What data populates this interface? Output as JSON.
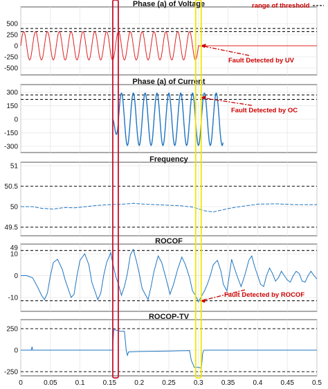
{
  "chart_data": [
    {
      "type": "line",
      "title": "Phase (a) of Voltage",
      "ylim": [
        -600,
        600
      ],
      "yticks": [
        500,
        250,
        0,
        -250,
        -500
      ],
      "thresholds": [
        390,
        320
      ],
      "legend": {
        "label": "range of threshold",
        "placement": "top-right"
      },
      "series": [
        {
          "color": "#e02020",
          "amplitude": 320,
          "freq_hz": 50,
          "x_range": [
            0,
            0.3
          ],
          "after": {
            "x_range": [
              0.3,
              0.5
            ],
            "value": 0
          }
        }
      ],
      "annotation": {
        "text": "Fault Detected by UV",
        "x": 0.3
      }
    },
    {
      "type": "line",
      "title": "Phase (a) of Current",
      "ylim": [
        -340,
        340
      ],
      "yticks": [
        300,
        150,
        0,
        -150,
        -300
      ],
      "thresholds": [
        270,
        220
      ],
      "series": [
        {
          "color": "#1e74c0",
          "amplitude": 290,
          "freq_hz": 50,
          "x_range": [
            0.155,
            0.342
          ]
        }
      ],
      "annotation": {
        "text": "Fault Detected by OC",
        "x": 0.3
      }
    },
    {
      "type": "line",
      "title": "Frequency",
      "ylim": [
        49,
        51
      ],
      "yticks": [
        51,
        50.5,
        50,
        49.5,
        49
      ],
      "thresholds": [
        50.5,
        49.5
      ],
      "series": [
        {
          "color": "#1e74c0",
          "style": "dashed",
          "points": [
            [
              0,
              50.0
            ],
            [
              0.02,
              50.0
            ],
            [
              0.035,
              49.96
            ],
            [
              0.055,
              49.94
            ],
            [
              0.075,
              49.98
            ],
            [
              0.09,
              49.97
            ],
            [
              0.11,
              50.0
            ],
            [
              0.13,
              50.03
            ],
            [
              0.15,
              50.05
            ],
            [
              0.17,
              50.06
            ],
            [
              0.19,
              50.08
            ],
            [
              0.21,
              50.06
            ],
            [
              0.24,
              50.04
            ],
            [
              0.27,
              50.02
            ],
            [
              0.29,
              49.99
            ],
            [
              0.31,
              49.9
            ],
            [
              0.325,
              49.87
            ],
            [
              0.34,
              49.92
            ],
            [
              0.36,
              49.98
            ],
            [
              0.38,
              50.02
            ],
            [
              0.4,
              50.06
            ],
            [
              0.43,
              50.07
            ],
            [
              0.46,
              50.05
            ],
            [
              0.5,
              50.05
            ]
          ]
        }
      ]
    },
    {
      "type": "line",
      "title": "ROCOF",
      "ylim": [
        -14,
        14
      ],
      "yticks": [
        10,
        0,
        -10
      ],
      "thresholds": [
        11.5,
        -11.5
      ],
      "series": [
        {
          "color": "#1e74c0",
          "points": [
            [
              0,
              0
            ],
            [
              0.01,
              0
            ],
            [
              0.02,
              -1
            ],
            [
              0.028,
              -5
            ],
            [
              0.035,
              -9
            ],
            [
              0.04,
              -11
            ],
            [
              0.045,
              -8
            ],
            [
              0.05,
              0
            ],
            [
              0.055,
              6
            ],
            [
              0.062,
              7.5
            ],
            [
              0.07,
              3
            ],
            [
              0.075,
              -2
            ],
            [
              0.085,
              -10
            ],
            [
              0.09,
              -8.5
            ],
            [
              0.095,
              0
            ],
            [
              0.1,
              7
            ],
            [
              0.108,
              10
            ],
            [
              0.115,
              5
            ],
            [
              0.12,
              -3
            ],
            [
              0.13,
              -11
            ],
            [
              0.135,
              -8
            ],
            [
              0.14,
              0
            ],
            [
              0.145,
              6
            ],
            [
              0.152,
              10.5
            ],
            [
              0.155,
              6
            ],
            [
              0.16,
              0
            ],
            [
              0.165,
              -4
            ],
            [
              0.17,
              -9
            ],
            [
              0.175,
              -5
            ],
            [
              0.18,
              1
            ],
            [
              0.185,
              9.5
            ],
            [
              0.19,
              12
            ],
            [
              0.195,
              7
            ],
            [
              0.2,
              1
            ],
            [
              0.205,
              -6
            ],
            [
              0.215,
              -11
            ],
            [
              0.22,
              -5
            ],
            [
              0.225,
              2
            ],
            [
              0.232,
              9
            ],
            [
              0.238,
              6
            ],
            [
              0.245,
              -1
            ],
            [
              0.252,
              -8.5
            ],
            [
              0.258,
              -4
            ],
            [
              0.265,
              3
            ],
            [
              0.272,
              8.5
            ],
            [
              0.278,
              5
            ],
            [
              0.285,
              -1
            ],
            [
              0.29,
              -7
            ],
            [
              0.295,
              -9
            ],
            [
              0.3,
              -12
            ],
            [
              0.305,
              -9.5
            ],
            [
              0.31,
              -7
            ],
            [
              0.315,
              -4
            ],
            [
              0.32,
              0
            ],
            [
              0.325,
              5
            ],
            [
              0.332,
              7
            ],
            [
              0.338,
              2
            ],
            [
              0.342,
              -4
            ],
            [
              0.348,
              -7
            ],
            [
              0.352,
              0
            ],
            [
              0.356,
              7.5
            ],
            [
              0.36,
              4
            ],
            [
              0.365,
              0
            ],
            [
              0.372,
              -5
            ],
            [
              0.378,
              0
            ],
            [
              0.385,
              7
            ],
            [
              0.39,
              9
            ],
            [
              0.395,
              4
            ],
            [
              0.4,
              0
            ],
            [
              0.405,
              -4
            ],
            [
              0.41,
              -5
            ],
            [
              0.415,
              0
            ],
            [
              0.42,
              3.5
            ],
            [
              0.425,
              1
            ],
            [
              0.43,
              -2.5
            ],
            [
              0.435,
              -1
            ],
            [
              0.44,
              2
            ],
            [
              0.445,
              0
            ],
            [
              0.45,
              -2
            ],
            [
              0.455,
              -3
            ],
            [
              0.46,
              0
            ],
            [
              0.465,
              2
            ],
            [
              0.47,
              1
            ],
            [
              0.475,
              -2.5
            ],
            [
              0.48,
              -3
            ],
            [
              0.485,
              0
            ],
            [
              0.49,
              2
            ],
            [
              0.495,
              0
            ],
            [
              0.5,
              -1.5
            ]
          ]
        }
      ],
      "annotation": {
        "text": "Fault Detected by ROCOF",
        "x": 0.3
      }
    },
    {
      "type": "line",
      "title": "ROCOP-TV",
      "ylim": [
        -300,
        300
      ],
      "yticks": [
        250,
        0,
        -250
      ],
      "thresholds": [
        250,
        -250
      ],
      "series": [
        {
          "color": "#1e74c0",
          "points": [
            [
              0,
              0
            ],
            [
              0.018,
              0
            ],
            [
              0.019,
              40
            ],
            [
              0.02,
              0
            ],
            [
              0.155,
              0
            ],
            [
              0.157,
              240
            ],
            [
              0.163,
              230
            ],
            [
              0.168,
              220
            ],
            [
              0.175,
              220
            ],
            [
              0.178,
              0
            ],
            [
              0.18,
              -60
            ],
            [
              0.182,
              -20
            ],
            [
              0.2,
              -15
            ],
            [
              0.25,
              -10
            ],
            [
              0.285,
              -5
            ],
            [
              0.288,
              -120
            ],
            [
              0.293,
              -200
            ],
            [
              0.3,
              -200
            ],
            [
              0.305,
              -210
            ],
            [
              0.307,
              -40
            ],
            [
              0.309,
              0
            ],
            [
              0.5,
              0
            ]
          ]
        }
      ]
    }
  ],
  "xaxis": {
    "ticks": [
      "0",
      "0.05",
      "0.1",
      "0.15",
      "0.2",
      "0.25",
      "0.3",
      "0.35",
      "0.4",
      "0.45",
      "0.5"
    ],
    "xlim": [
      0,
      0.5
    ]
  },
  "highlights": [
    {
      "x": 0.16,
      "color": "#c8102e"
    },
    {
      "x": 0.3,
      "color": "#f2e600"
    }
  ]
}
